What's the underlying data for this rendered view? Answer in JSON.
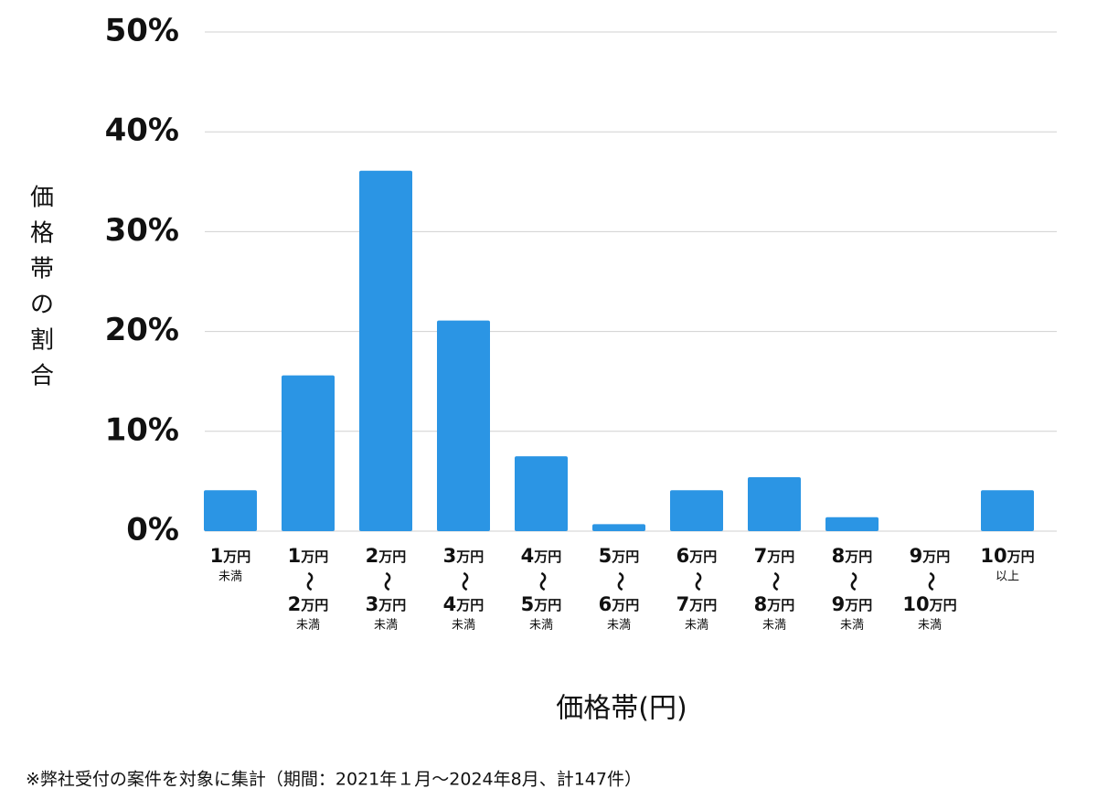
{
  "chart_data": {
    "type": "bar",
    "y_label": [
      "価",
      "格",
      "帯",
      "の",
      "割",
      "合"
    ],
    "x_label": "価格帯(円)",
    "footnote": "※弊社受付の案件を対象に集計（期間：2021年１月～2024年8月、計147件）",
    "categories": [
      [
        "1万円",
        "未満"
      ],
      [
        "1万円",
        "～",
        "2万円",
        "未満"
      ],
      [
        "2万円",
        "～",
        "3万円",
        "未満"
      ],
      [
        "3万円",
        "～",
        "4万円",
        "未満"
      ],
      [
        "4万円",
        "～",
        "5万円",
        "未満"
      ],
      [
        "5万円",
        "～",
        "6万円",
        "未満"
      ],
      [
        "6万円",
        "～",
        "7万円",
        "未満"
      ],
      [
        "7万円",
        "～",
        "8万円",
        "未満"
      ],
      [
        "8万円",
        "～",
        "9万円",
        "未満"
      ],
      [
        "9万円",
        "～",
        "10万円",
        "未満"
      ],
      [
        "10万円",
        "以上"
      ]
    ],
    "values": [
      4.1,
      15.6,
      36.1,
      21.1,
      7.5,
      0.7,
      4.1,
      5.4,
      1.4,
      0,
      4.1
    ],
    "color": "#2b95e4",
    "ylim": [
      0,
      50
    ],
    "yticks": [
      {
        "value": 0,
        "label": "0%"
      },
      {
        "value": 10,
        "label": "10%"
      },
      {
        "value": 20,
        "label": "20%"
      },
      {
        "value": 30,
        "label": "30%"
      },
      {
        "value": 40,
        "label": "40%"
      },
      {
        "value": 50,
        "label": "50%"
      }
    ],
    "grid": true
  }
}
